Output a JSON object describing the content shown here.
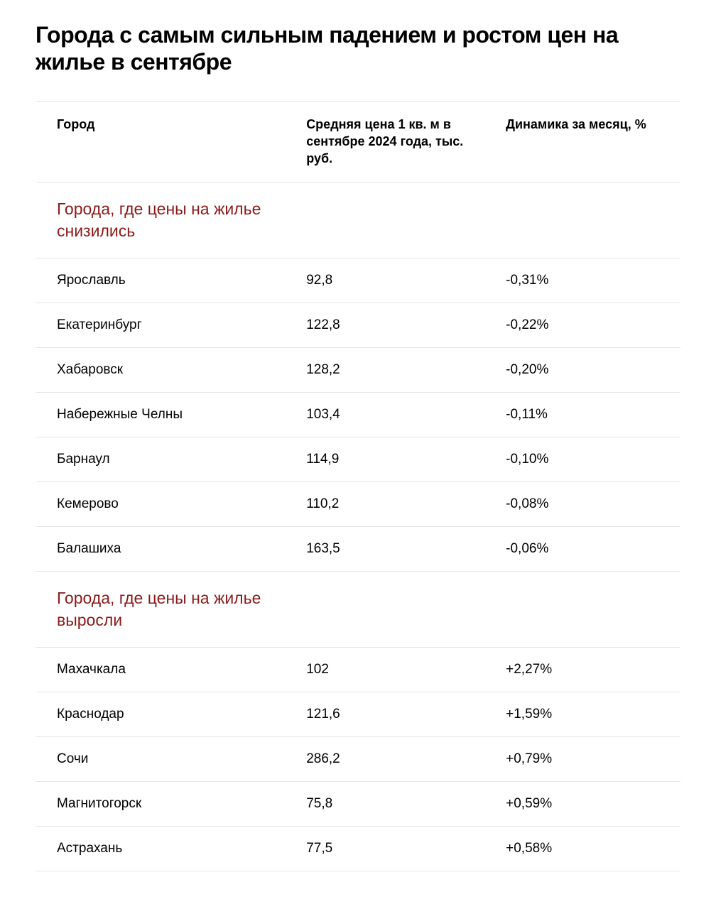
{
  "title": "Города с самым сильным падением и ростом цен на жилье в сентябре",
  "columns": {
    "city": "Город",
    "price": "Средняя цена 1 кв. м в сентябре 2024 года, тыс. руб.",
    "change": "Динамика за месяц, %"
  },
  "sections": [
    {
      "title": "Города, где цены на жилье снизились",
      "rows": [
        {
          "city": "Ярославль",
          "price": "92,8",
          "change": "-0,31%"
        },
        {
          "city": "Екатеринбург",
          "price": "122,8",
          "change": "-0,22%"
        },
        {
          "city": "Хабаровск",
          "price": "128,2",
          "change": "-0,20%"
        },
        {
          "city": "Набережные Челны",
          "price": "103,4",
          "change": "-0,11%"
        },
        {
          "city": "Барнаул",
          "price": "114,9",
          "change": "-0,10%"
        },
        {
          "city": "Кемерово",
          "price": "110,2",
          "change": "-0,08%"
        },
        {
          "city": "Балашиха",
          "price": "163,5",
          "change": "-0,06%"
        }
      ]
    },
    {
      "title": "Города, где цены на жилье выросли",
      "rows": [
        {
          "city": "Махачкала",
          "price": "102",
          "change": "+2,27%"
        },
        {
          "city": "Краснодар",
          "price": "121,6",
          "change": "+1,59%"
        },
        {
          "city": "Сочи",
          "price": "286,2",
          "change": "+0,79%"
        },
        {
          "city": "Магнитогорск",
          "price": "75,8",
          "change": "+0,59%"
        },
        {
          "city": "Астрахань",
          "price": "77,5",
          "change": "+0,58%"
        }
      ]
    }
  ],
  "styling": {
    "title_fontsize": 32,
    "title_weight": 800,
    "header_fontsize": 18,
    "header_weight": 700,
    "section_title_color": "#8b1a1a",
    "section_title_fontsize": 23,
    "border_color": "#e5e5e5",
    "text_color": "#000000",
    "background_color": "#ffffff",
    "row_fontsize": 19,
    "column_widths": {
      "city": "40%",
      "price": "32%",
      "change": "28%"
    }
  }
}
